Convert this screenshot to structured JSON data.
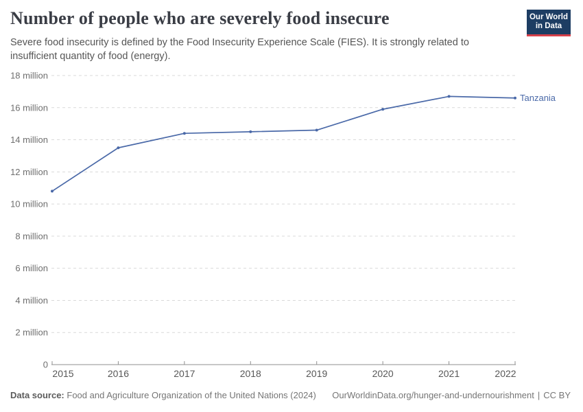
{
  "header": {
    "title": "Number of people who are severely food insecure",
    "subtitle": "Severe food insecurity is defined by the Food Insecurity Experience Scale (FIES). It is strongly related to insufficient quantity of food (energy)."
  },
  "logo": {
    "line1": "Our World",
    "line2": "in Data",
    "background": "#1d3d63",
    "stripe": "#d6404a"
  },
  "chart_data": {
    "type": "line",
    "x": [
      2015,
      2016,
      2017,
      2018,
      2019,
      2020,
      2021,
      2022
    ],
    "series": [
      {
        "name": "Tanzania",
        "values_millions": [
          10.8,
          13.5,
          14.4,
          14.5,
          14.6,
          15.9,
          16.7,
          16.6
        ],
        "color": "#4a69a8"
      }
    ],
    "entity_label": "Tanzania",
    "ylim_millions": [
      0,
      18
    ],
    "ytick_step_millions": 2,
    "ytick_label_suffix": " million",
    "ytick_zero_label": "0",
    "grid": "horizontal dashed",
    "legend_position": "end-of-line label"
  },
  "footer": {
    "source_label": "Data source:",
    "source_text": "Food and Agriculture Organization of the United Nations (2024)",
    "link": "OurWorldinData.org/hunger-and-undernourishment",
    "separator": "|",
    "license": "CC BY"
  }
}
